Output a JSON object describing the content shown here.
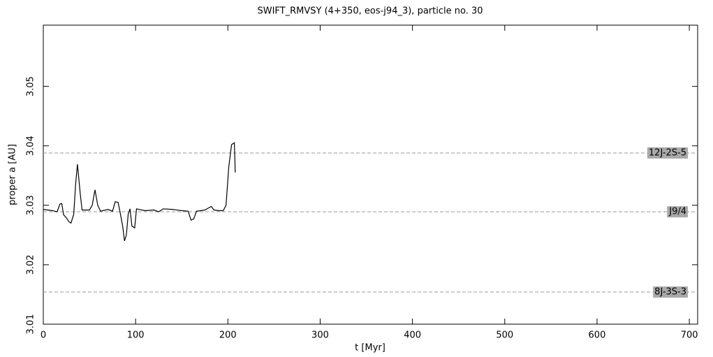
{
  "chart_data": {
    "type": "line",
    "title": "SWIFT_RMVSY (4+350, eos-j94_3), particle no. 30",
    "x_label": "t [Myr]",
    "y_label": "proper a [AU]",
    "color": "#000000",
    "x": [
      0,
      10,
      15,
      18,
      20,
      22,
      25,
      28,
      30,
      33,
      35,
      37,
      40,
      42,
      50,
      53,
      56,
      59,
      62,
      70,
      75,
      78,
      81,
      83,
      86,
      88,
      90,
      92,
      94,
      96,
      99,
      101,
      110,
      120,
      125,
      130,
      140,
      150,
      157,
      160,
      163,
      166,
      175,
      182,
      185,
      190,
      195,
      198,
      201,
      204,
      207,
      208
    ],
    "values": [
      3.0293,
      3.0291,
      3.0289,
      3.0302,
      3.0303,
      3.0284,
      3.0279,
      3.0272,
      3.027,
      3.0285,
      3.0335,
      3.0369,
      3.032,
      3.0292,
      3.0292,
      3.03,
      3.0326,
      3.03,
      3.029,
      3.0293,
      3.029,
      3.0306,
      3.0305,
      3.029,
      3.0265,
      3.024,
      3.025,
      3.0285,
      3.0294,
      3.0265,
      3.0262,
      3.0294,
      3.0291,
      3.0292,
      3.0289,
      3.0294,
      3.0293,
      3.0291,
      3.029,
      3.0275,
      3.0277,
      3.029,
      3.0292,
      3.0298,
      3.0292,
      3.0291,
      3.0291,
      3.03,
      3.0365,
      3.0402,
      3.0405,
      3.0355
    ],
    "xlim": [
      0,
      709
    ],
    "ylim": [
      3.01,
      3.0603
    ],
    "xticks": [
      0,
      100,
      200,
      300,
      400,
      500,
      600,
      700
    ],
    "yticks": [
      3.01,
      3.02,
      3.03,
      3.04,
      3.05
    ],
    "resonances": [
      {
        "label": "12J-2S-5",
        "value": 3.0388
      },
      {
        "label": "J9/4",
        "value": 3.0289
      },
      {
        "label": "8J-3S-3",
        "value": 3.0154
      }
    ]
  }
}
